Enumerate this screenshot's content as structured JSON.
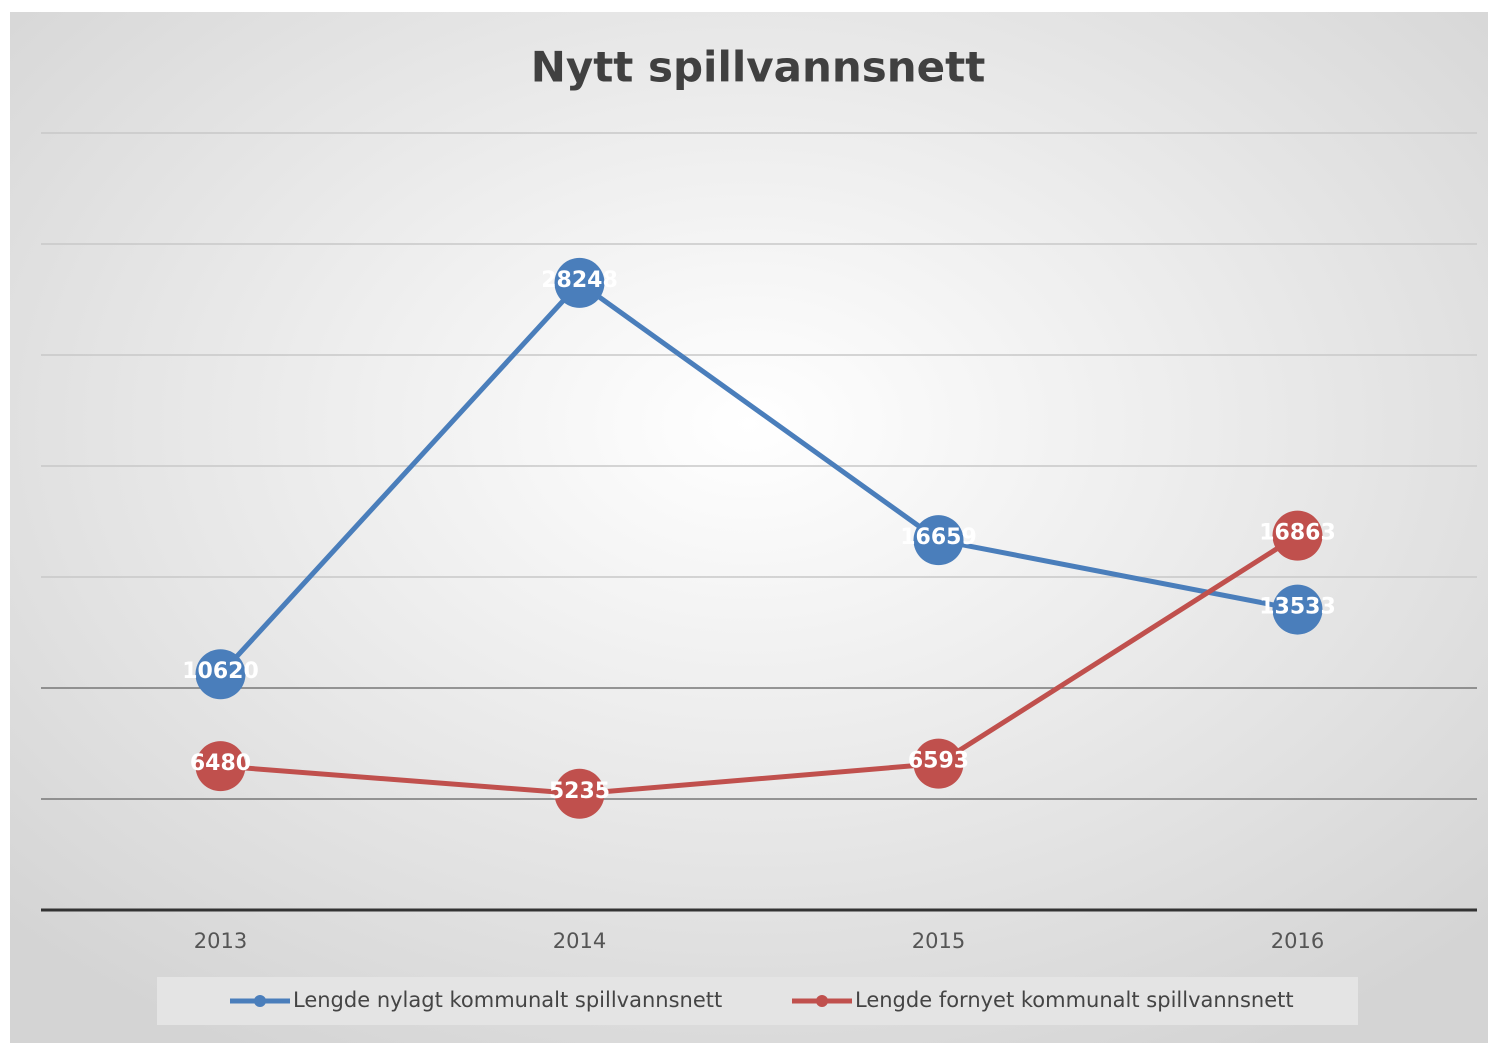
{
  "chart_data": {
    "type": "line",
    "title": "Nytt spillvannsnett",
    "categories": [
      "2013",
      "2014",
      "2015",
      "2016"
    ],
    "series": [
      {
        "name": "Lengde nylagt kommunalt spillvannsnett",
        "color": "#4a7ebb",
        "values": [
          10620,
          28248,
          16659,
          13533
        ]
      },
      {
        "name": "Lengde fornyet kommunalt spillvannsnett",
        "color": "#c0504d",
        "values": [
          6480,
          5235,
          6593,
          16863
        ]
      }
    ],
    "ylim": [
      0,
      35000
    ],
    "yticks": [
      0,
      5000,
      10000,
      15000,
      20000,
      25000,
      30000,
      35000
    ],
    "grid": true,
    "legend": "bottom"
  }
}
